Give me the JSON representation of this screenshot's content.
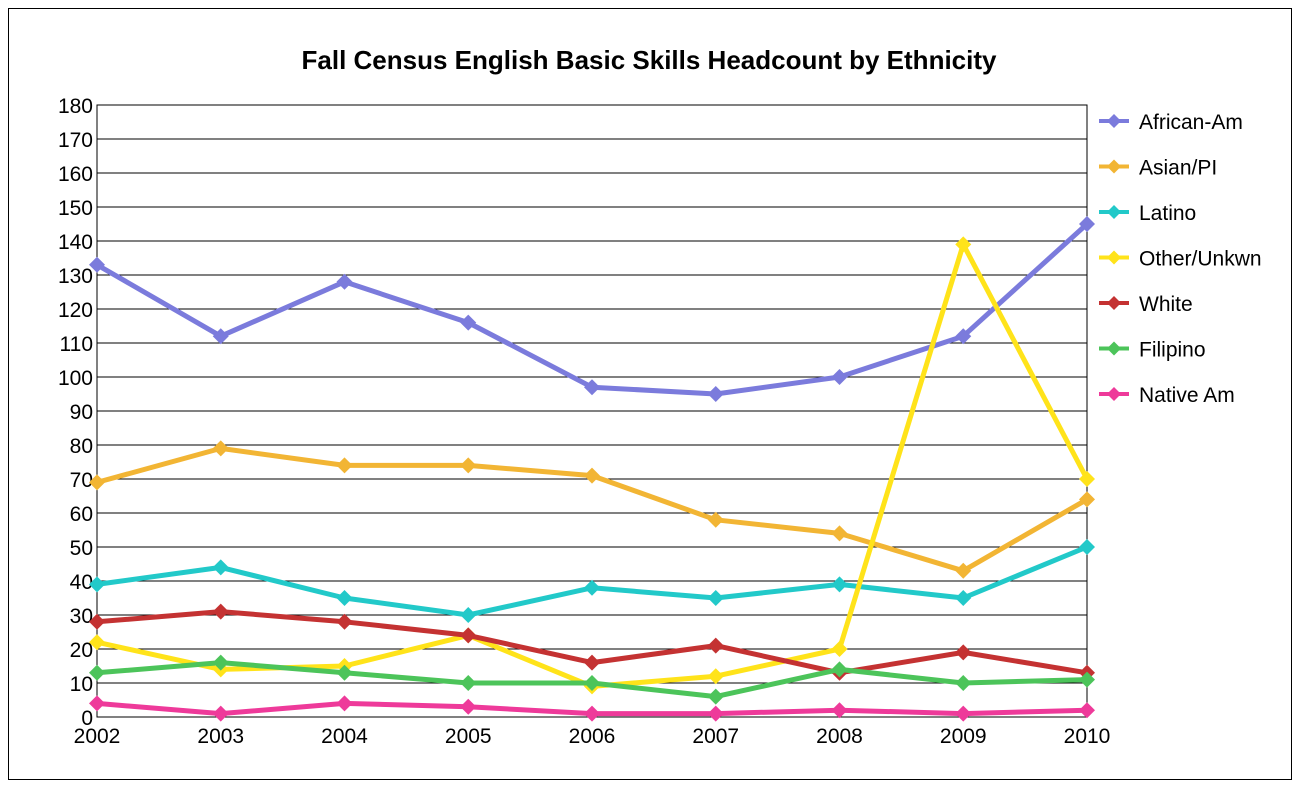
{
  "chart_data": {
    "type": "line",
    "title": "Fall Census English Basic Skills Headcount by Ethnicity",
    "xlabel": "",
    "ylabel": "",
    "categories": [
      "2002",
      "2003",
      "2004",
      "2005",
      "2006",
      "2007",
      "2008",
      "2009",
      "2010"
    ],
    "ylim": [
      0,
      180
    ],
    "yticks": [
      0,
      10,
      20,
      30,
      40,
      50,
      60,
      70,
      80,
      90,
      100,
      110,
      120,
      130,
      140,
      150,
      160,
      170,
      180
    ],
    "grid": true,
    "legend_position": "right",
    "marker": "diamond",
    "series": [
      {
        "name": "African-Am",
        "color": "#7b7bdc",
        "values": [
          133,
          112,
          128,
          116,
          97,
          95,
          100,
          112,
          145
        ]
      },
      {
        "name": "Asian/PI",
        "color": "#f2b534",
        "values": [
          69,
          79,
          74,
          74,
          71,
          58,
          54,
          43,
          64
        ]
      },
      {
        "name": "Latino",
        "color": "#22c9c9",
        "values": [
          39,
          44,
          35,
          30,
          38,
          35,
          39,
          35,
          50
        ]
      },
      {
        "name": "Other/Unkwn",
        "color": "#ffe31a",
        "values": [
          22,
          14,
          15,
          24,
          9,
          12,
          20,
          139,
          70
        ]
      },
      {
        "name": "White",
        "color": "#c43232",
        "values": [
          28,
          31,
          28,
          24,
          16,
          21,
          13,
          19,
          13
        ]
      },
      {
        "name": "Filipino",
        "color": "#4cc45a",
        "values": [
          13,
          16,
          13,
          10,
          10,
          6,
          14,
          10,
          11
        ]
      },
      {
        "name": "Native Am",
        "color": "#ee3a9a",
        "values": [
          4,
          1,
          4,
          3,
          1,
          1,
          2,
          1,
          2
        ]
      }
    ]
  }
}
